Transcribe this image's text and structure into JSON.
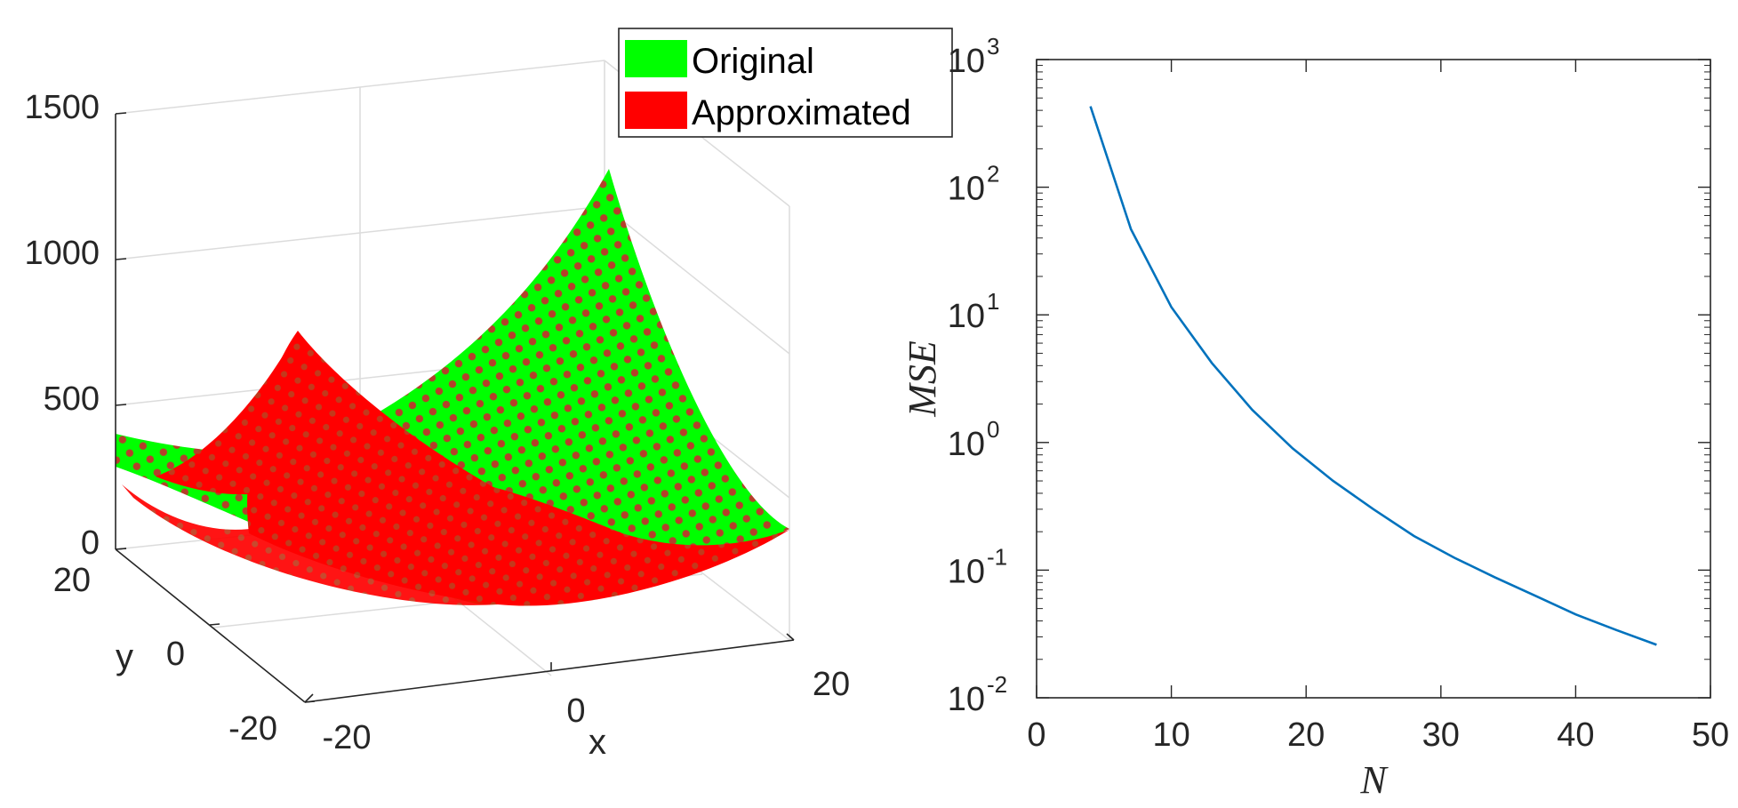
{
  "chart_data": [
    {
      "type": "surface",
      "xlabel": "x",
      "ylabel": "y",
      "zlabel": "",
      "xlim": [
        -20,
        20
      ],
      "ylim": [
        -20,
        20
      ],
      "zlim": [
        0,
        1500
      ],
      "x_ticks": [
        "-20",
        "0",
        "20"
      ],
      "y_ticks": [
        "-20",
        "0",
        "20"
      ],
      "z_ticks": [
        "0",
        "500",
        "1000",
        "1500"
      ],
      "legend_position": "top-right",
      "series": [
        {
          "name": "Original",
          "color": "#00ff00"
        },
        {
          "name": "Approximated",
          "color": "#ff0000"
        }
      ]
    },
    {
      "type": "line",
      "xlabel": "N",
      "ylabel": "MSE",
      "xlim": [
        0,
        50
      ],
      "ylim": [
        0.01,
        1000
      ],
      "yscale": "log",
      "x_ticks": [
        "0",
        "10",
        "20",
        "30",
        "40",
        "50"
      ],
      "y_ticks": [
        {
          "base": "10",
          "exp": "-2",
          "value": 0.01
        },
        {
          "base": "10",
          "exp": "-1",
          "value": 0.1
        },
        {
          "base": "10",
          "exp": "0",
          "value": 1
        },
        {
          "base": "10",
          "exp": "1",
          "value": 10
        },
        {
          "base": "10",
          "exp": "2",
          "value": 100
        },
        {
          "base": "10",
          "exp": "3",
          "value": 1000
        }
      ],
      "color": "#0072bd",
      "x": [
        4,
        7,
        10,
        13,
        16,
        19,
        22,
        25,
        28,
        31,
        34,
        37,
        40,
        43,
        46
      ],
      "y": [
        430,
        47,
        11.5,
        4.2,
        1.8,
        0.9,
        0.5,
        0.3,
        0.185,
        0.125,
        0.088,
        0.063,
        0.045,
        0.034,
        0.026
      ]
    }
  ]
}
